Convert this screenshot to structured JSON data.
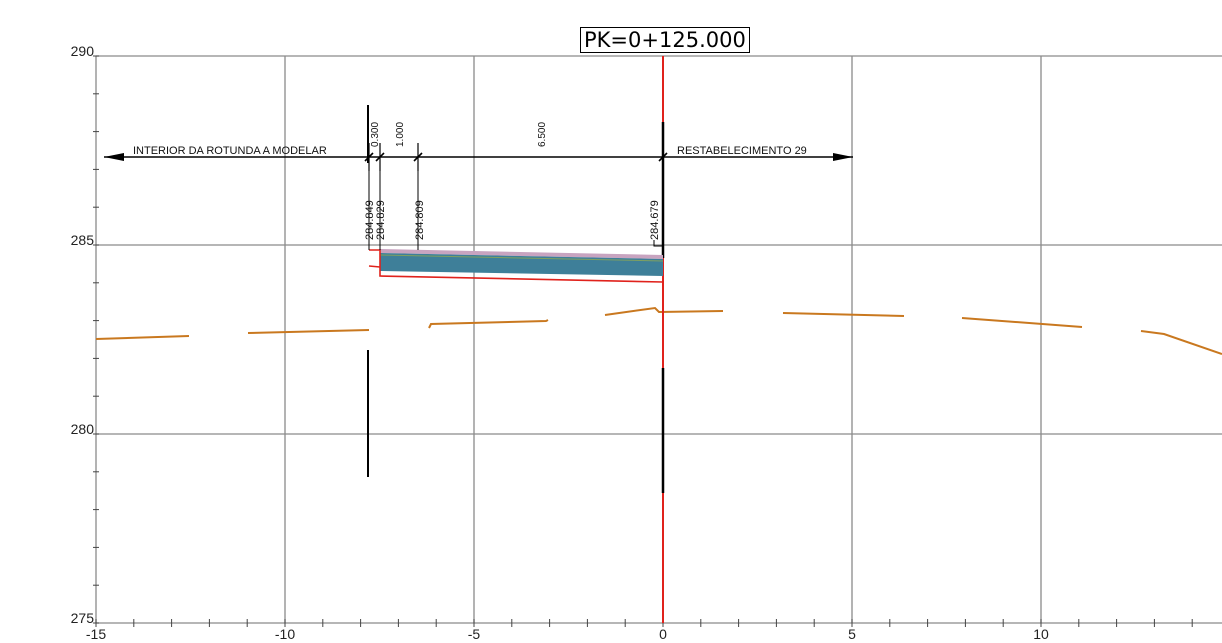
{
  "station_label": "PK=0+125.000",
  "axes": {
    "x_range": [
      -15,
      17
    ],
    "y_range": [
      275,
      290
    ],
    "x_ticks": [
      "-15",
      "-10",
      "-5",
      "0",
      "5",
      "10"
    ],
    "y_ticks": [
      "290",
      "285",
      "280",
      "275"
    ]
  },
  "dimensions": {
    "left_label": "INTERIOR DA ROTUNDA A MODELAR",
    "right_label": "RESTABELECIMENTO 29",
    "segment_widths": [
      "0.300",
      "1.000",
      "6.500"
    ]
  },
  "elevation_labels": [
    "284.849",
    "284.829",
    "284.809",
    "284.679"
  ],
  "colors": {
    "grid": "#8a8a8a",
    "axis_line": "#e0221c",
    "terrain": "#c9781f",
    "pavement": "#3e7f99",
    "dimension": "#000000"
  }
}
